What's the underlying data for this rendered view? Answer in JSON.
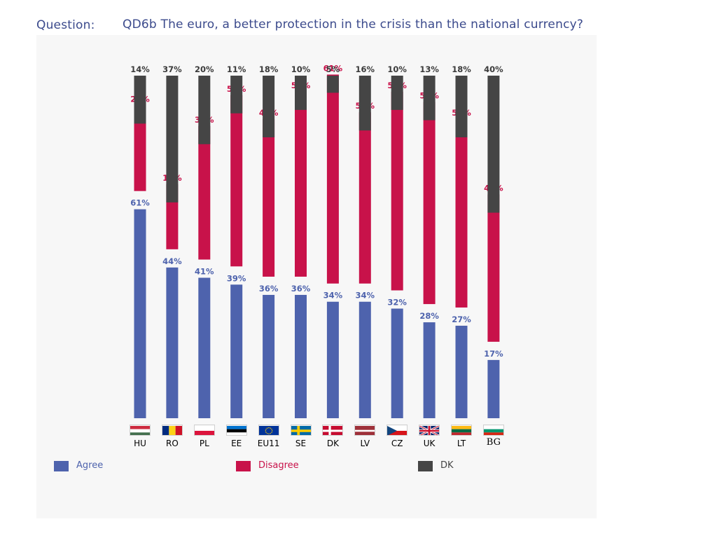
{
  "question": {
    "label": "Question:",
    "text": "QD6b The euro, a better protection in the crisis than the national currency?"
  },
  "colors": {
    "agree": "#4e63ad",
    "disagree": "#c8124a",
    "dk": "#454545"
  },
  "chart_data": {
    "type": "bar",
    "stacked": true,
    "categories": [
      "HU",
      "RO",
      "PL",
      "EE",
      "EU11",
      "SE",
      "DK",
      "LV",
      "CZ",
      "UK",
      "LT",
      "BG"
    ],
    "series": [
      {
        "name": "Agree",
        "values": [
          61,
          44,
          41,
          39,
          36,
          36,
          34,
          34,
          32,
          28,
          27,
          17
        ]
      },
      {
        "name": "Disagree",
        "values": [
          25,
          19,
          39,
          50,
          46,
          54,
          61,
          50,
          58,
          59,
          55,
          43
        ]
      },
      {
        "name": "DK",
        "values": [
          14,
          37,
          20,
          11,
          18,
          10,
          5,
          16,
          10,
          13,
          18,
          40
        ]
      }
    ],
    "value_suffix": "%",
    "legend_position": "bottom",
    "grid": false
  },
  "legend": [
    {
      "label": "Agree",
      "color": "#4e63ad"
    },
    {
      "label": "Disagree",
      "color": "#c8124a"
    },
    {
      "label": "DK",
      "color": "#454545"
    }
  ]
}
